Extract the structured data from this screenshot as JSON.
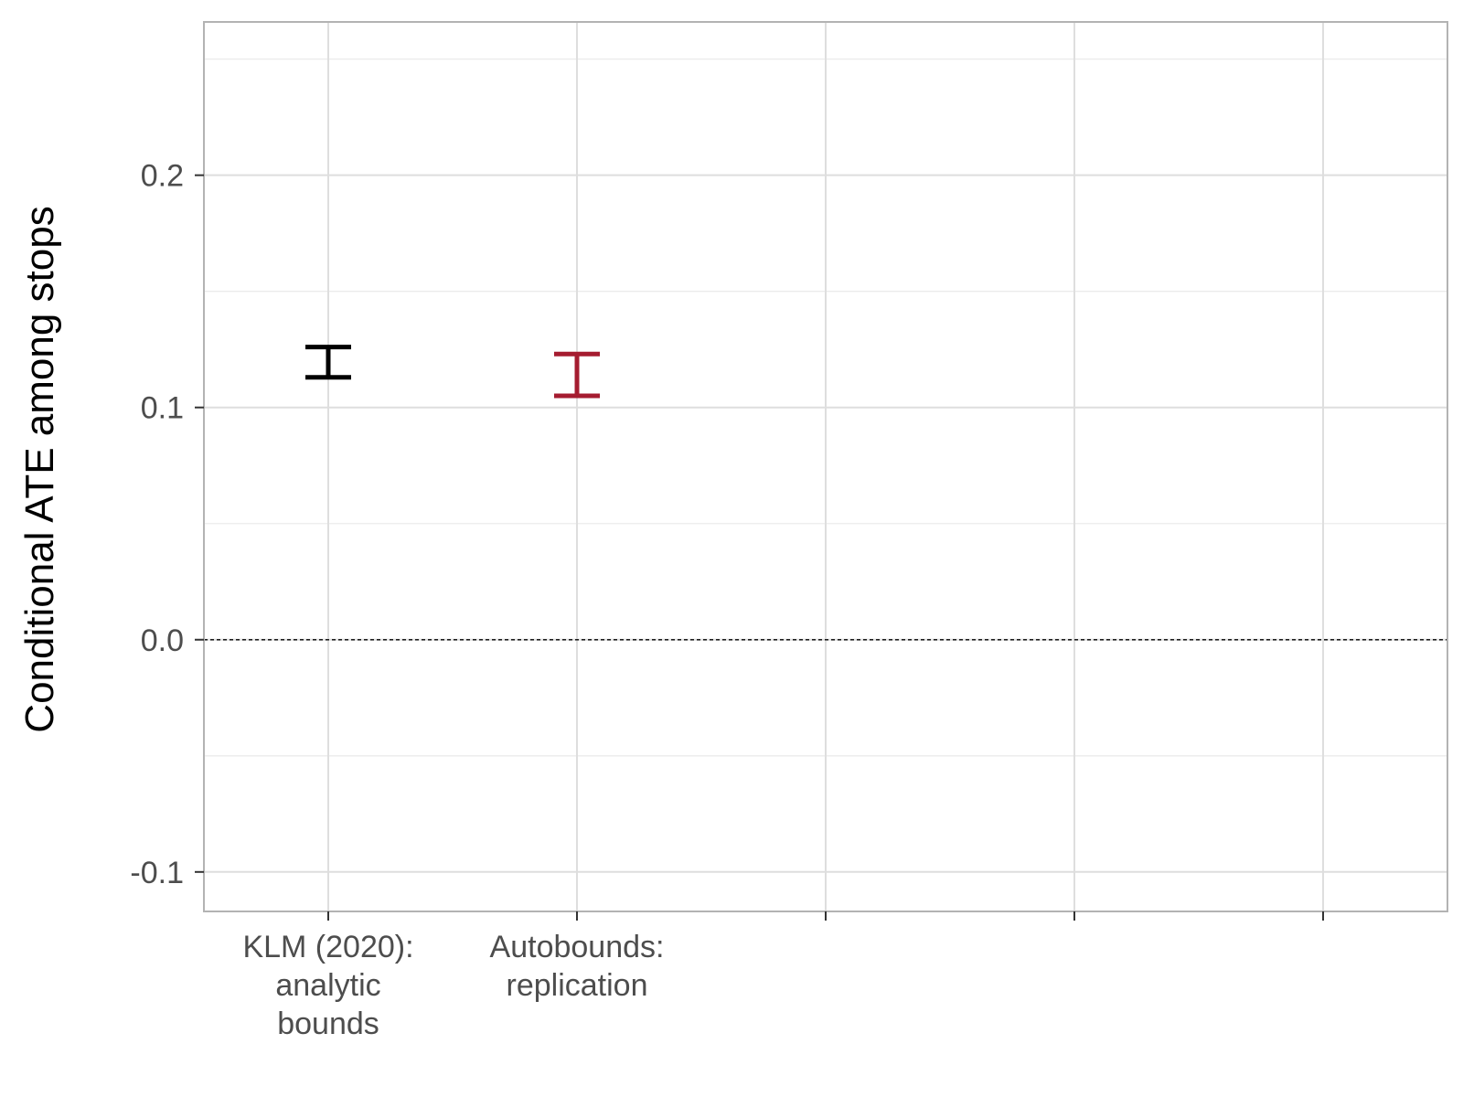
{
  "chart_data": {
    "type": "errorbar",
    "title": "",
    "xlabel": "",
    "ylabel": "Conditional ATE among stops",
    "ylim": [
      -0.117,
      0.266
    ],
    "yticks": [
      -0.1,
      0.0,
      0.1,
      0.2
    ],
    "ytick_labels": [
      "-0.1",
      "0.0",
      "0.1",
      "0.2"
    ],
    "x_slots": 5,
    "categories": [
      {
        "lines": [
          "KLM (2020):",
          "analytic",
          "bounds"
        ]
      },
      {
        "lines": [
          "Autobounds:",
          "replication"
        ]
      }
    ],
    "intervals": [
      {
        "category_index": 0,
        "lower": 0.113,
        "upper": 0.126,
        "color": "#000000"
      },
      {
        "category_index": 1,
        "lower": 0.105,
        "upper": 0.123,
        "color": "#a51c30"
      }
    ],
    "reference_line": {
      "y": 0.0,
      "style": "dashed",
      "color": "#000000"
    },
    "grid": true,
    "legend": "none"
  }
}
